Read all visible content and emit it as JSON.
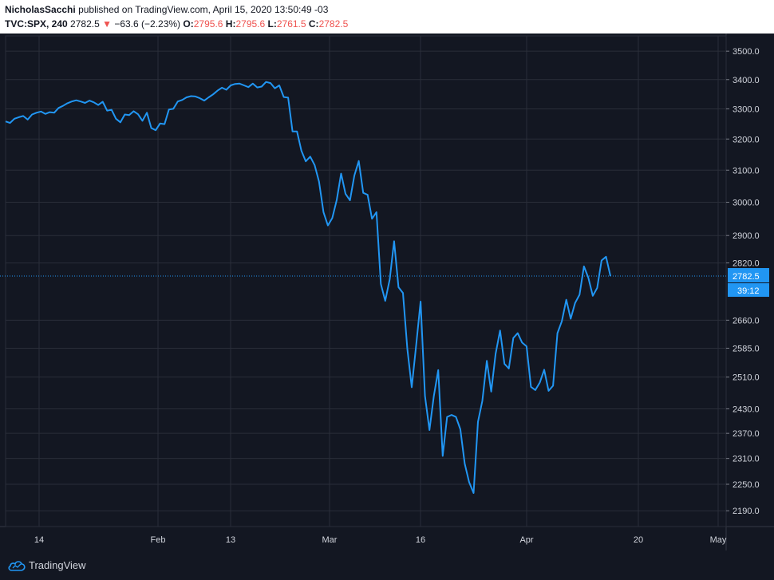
{
  "header": {
    "author": "NicholasSacchi",
    "published_text": "published on TradingView.com, April 15, 2020 13:50:49 -03",
    "symbol": "TVC:SPX, 240",
    "last_price": "2782.5",
    "change_arrow": "▼",
    "change": "−63.6 (−2.23%)",
    "open_label": "O:",
    "open_value": "2795.6",
    "high_label": "H:",
    "high_value": "2795.6",
    "low_label": "L:",
    "low_value": "2761.5",
    "close_label": "C:",
    "close_value": "2782.5"
  },
  "footer": {
    "brand": "TradingView"
  },
  "colors": {
    "background": "#131722",
    "line": "#2196f3",
    "grid": "#2a2e39",
    "text": "#d1d4dc",
    "down": "#ef5350"
  },
  "chart_data": {
    "type": "line",
    "series": [
      {
        "values": [
          3258,
          3253,
          3267,
          3272,
          3276,
          3264,
          3281,
          3287,
          3291,
          3283,
          3289,
          3287,
          3303,
          3310,
          3319,
          3325,
          3329,
          3325,
          3320,
          3328,
          3322,
          3313,
          3324,
          3294,
          3297,
          3267,
          3255,
          3281,
          3279,
          3292,
          3282,
          3260,
          3287,
          3236,
          3229,
          3251,
          3249,
          3298,
          3300,
          3325,
          3330,
          3339,
          3343,
          3342,
          3336,
          3328,
          3339,
          3349,
          3362,
          3372,
          3365,
          3380,
          3385,
          3386,
          3380,
          3374,
          3386,
          3373,
          3376,
          3392,
          3388,
          3370,
          3380,
          3340,
          3338,
          3225,
          3225,
          3162,
          3128,
          3143,
          3116,
          3064,
          2970,
          2930,
          2952,
          3007,
          3089,
          3026,
          3006,
          3083,
          3129,
          3029,
          3023,
          2950,
          2970,
          2760,
          2713,
          2773,
          2883,
          2751,
          2735,
          2583,
          2484,
          2594,
          2711,
          2462,
          2378,
          2462,
          2528,
          2316,
          2410,
          2415,
          2410,
          2380,
          2298,
          2255,
          2230,
          2398,
          2450,
          2552,
          2473,
          2570,
          2632,
          2544,
          2532,
          2612,
          2625,
          2600,
          2590,
          2485,
          2477,
          2496,
          2529,
          2475,
          2488,
          2625,
          2657,
          2716,
          2664,
          2707,
          2730,
          2810,
          2778,
          2727,
          2749,
          2827,
          2838,
          2782.5
        ]
      }
    ],
    "x_tick_labels": [
      "14",
      "Feb",
      "13",
      "Mar",
      "16",
      "Apr",
      "20",
      "May"
    ],
    "y_tick_labels": [
      "3500.0",
      "3400.0",
      "3300.0",
      "3200.0",
      "3100.0",
      "3000.0",
      "2900.0",
      "2820.0",
      "2660.0",
      "2585.0",
      "2510.0",
      "2430.0",
      "2370.0",
      "2310.0",
      "2250.0",
      "2190.0"
    ],
    "ylim": [
      2155,
      3555
    ],
    "y_scale": "log",
    "price_label": "2782.5",
    "countdown_label": "39:12",
    "grid": true
  }
}
